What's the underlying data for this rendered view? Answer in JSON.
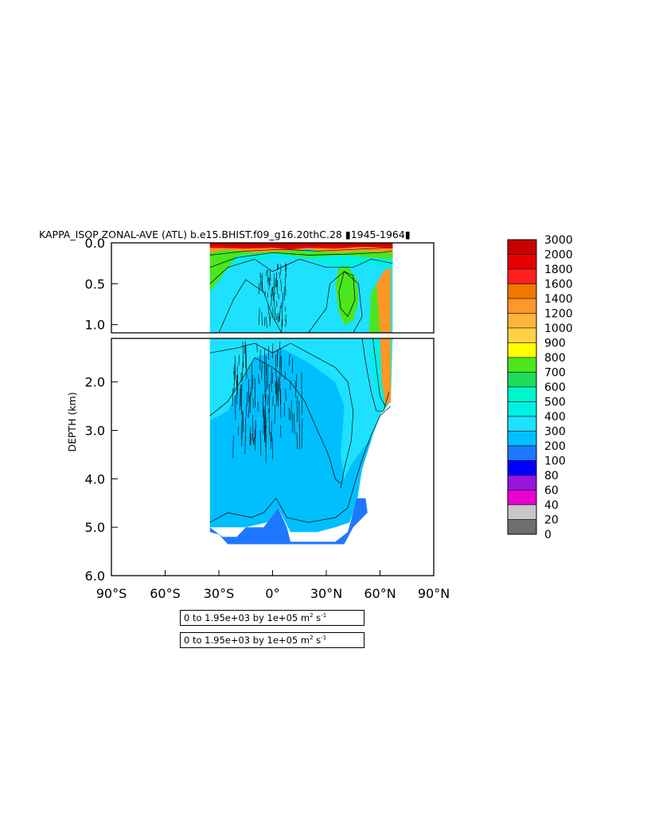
{
  "title": "KAPPA_ISOP ZONAL-AVE (ATL) b.e15.BHIST.f09_g16.20thC.28 ▮1945-1964▮",
  "info_boxes": [
    {
      "text": "0 to 1.95e+03 by 1e+05 m",
      "sup1": "2",
      "mid": " s",
      "sup2": "-1"
    },
    {
      "text": "0 to 1.95e+03 by 1e+05 m",
      "sup1": "2",
      "mid": " s",
      "sup2": "-1"
    }
  ],
  "chart_data": {
    "type": "heatmap",
    "title": "KAPPA_ISOP ZONAL-AVE (ATL) b.e15.BHIST.f09_g16.20thC.28 ▮1945-1964▮",
    "ylabel": "DEPTH (km)",
    "xlabel": "",
    "xlim": [
      -90,
      90
    ],
    "x_ticks": [
      -90,
      -60,
      -30,
      0,
      30,
      60,
      90
    ],
    "x_tick_labels": [
      "90°S",
      "60°S",
      "30°S",
      "0°",
      "30°N",
      "60°N",
      "90°N"
    ],
    "upper_panel": {
      "ylim": [
        0.0,
        1.1
      ],
      "y_ticks": [
        0.0,
        0.5,
        1.0
      ],
      "y_tick_labels": [
        "0.0",
        "0.5",
        "1.0"
      ]
    },
    "lower_panel": {
      "ylim": [
        1.1,
        6.0
      ],
      "y_ticks": [
        2.0,
        3.0,
        4.0,
        5.0,
        6.0
      ],
      "y_tick_labels": [
        "2.0",
        "3.0",
        "4.0",
        "5.0",
        "6.0"
      ]
    },
    "colorbar": {
      "levels": [
        0,
        20,
        40,
        60,
        80,
        100,
        200,
        300,
        400,
        500,
        600,
        700,
        800,
        900,
        1000,
        1200,
        1400,
        1600,
        1800,
        2000,
        3000
      ],
      "labels": [
        "3000",
        "2000",
        "1800",
        "1600",
        "1400",
        "1200",
        "1000",
        "900",
        "800",
        "700",
        "600",
        "500",
        "400",
        "300",
        "200",
        "100",
        "80",
        "60",
        "40",
        "20",
        "0"
      ],
      "colors": [
        "#c80000",
        "#e60000",
        "#ff2020",
        "#f07800",
        "#ff9628",
        "#ffb43c",
        "#ffd246",
        "#ffff00",
        "#4be61e",
        "#1edc5a",
        "#00f5c8",
        "#00f0e6",
        "#1ee1ff",
        "#00bfff",
        "#1e78ff",
        "#0000ff",
        "#9614dc",
        "#e600d2",
        "#c8c8c8",
        "#6e6e6e"
      ]
    },
    "colors": {
      "ocean_bg": "#1ee1ff",
      "deep": "#00bfff",
      "bottom": "#1e78ff",
      "mid": "#00f0e6",
      "green": "#4be61e",
      "orange": "#ff9628",
      "red": "#e60000",
      "darkred": "#c80000"
    }
  }
}
